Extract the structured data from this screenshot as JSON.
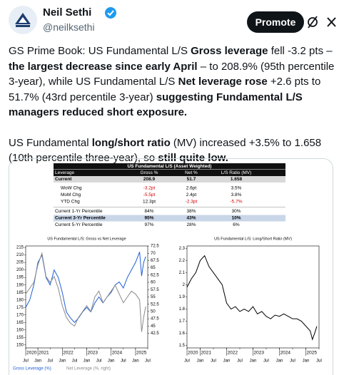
{
  "header": {
    "name": "Neil Sethi",
    "handle": "@neilksethi",
    "button": "Promote"
  },
  "tweet": {
    "paragraphs": [
      [
        {
          "text": "GS Prime Book: US Fundamental L/S ",
          "bold": false
        },
        {
          "text": "Gross leverage",
          "bold": true
        },
        {
          "text": " fell -3.2 pts – ",
          "bold": false
        },
        {
          "text": "the largest decrease since early April",
          "bold": true
        },
        {
          "text": " – to 208.9% (95th percentile 3-year), while US Fundamental L/S ",
          "bold": false
        },
        {
          "text": "Net leverage rose",
          "bold": true
        },
        {
          "text": " +2.6 pts to 51.7% (43rd percentile 3-year) ",
          "bold": false
        },
        {
          "text": "suggesting Fundamental L/S managers reduced short exposure.",
          "bold": true
        }
      ],
      [
        {
          "text": "US Fundamental ",
          "bold": false
        },
        {
          "text": "long/short ratio",
          "bold": true
        },
        {
          "text": " (MV) increased +3.5% to 1.658 (10th percentile three-year), so ",
          "bold": false
        },
        {
          "text": "still quite low.",
          "bold": true
        }
      ]
    ]
  },
  "table": {
    "title": "US Fundamental L/S (Asset Weighted)",
    "header": [
      "Leverage",
      "Gross %",
      "Net %",
      "L/S Ratio (MV)"
    ],
    "current": {
      "label": "Current",
      "cells": [
        "208.9",
        "51.7",
        "1.658"
      ]
    },
    "changes": [
      {
        "label": "WoW Chg",
        "cells": [
          "-3.2pt",
          "2.6pt",
          "3.5%"
        ]
      },
      {
        "label": "MoM Chg",
        "cells": [
          "-5.5pt",
          "2.4pt",
          "3.8%"
        ]
      },
      {
        "label": "YTD Chg",
        "cells": [
          "12.3pt",
          "-2.3pt",
          "-5.7%"
        ]
      }
    ],
    "percentiles": [
      {
        "label": "Current 1-Yr Percentile",
        "cells": [
          "84%",
          "38%",
          "30%"
        ]
      },
      {
        "label": "Current 3-Yr Percentile",
        "cells": [
          "95%",
          "43%",
          "10%"
        ]
      },
      {
        "label": "Current 5-Yr Percentile",
        "cells": [
          "97%",
          "28%",
          "6%"
        ]
      }
    ]
  },
  "chart_data": [
    {
      "type": "line",
      "title": "US Fundamental L/S: Gross vs Net Leverage",
      "x": [
        "2020-07",
        "2020-09",
        "2020-11",
        "2021-01",
        "2021-03",
        "2021-05",
        "2021-07",
        "2021-09",
        "2021-11",
        "2022-01",
        "2022-03",
        "2022-05",
        "2022-07",
        "2022-09",
        "2022-11",
        "2023-01",
        "2023-03",
        "2023-05",
        "2023-07",
        "2023-09",
        "2023-11",
        "2024-01",
        "2024-03",
        "2024-05",
        "2024-07",
        "2024-09",
        "2024-11",
        "2025-01",
        "2025-03",
        "2025-04",
        "2025-05",
        "2025-06"
      ],
      "xlim": [
        "2020-07",
        "2025-07"
      ],
      "xticks": [
        {
          "value": "2020-07",
          "label": "Jul"
        },
        {
          "value": "2021-01",
          "label": "Jan"
        },
        {
          "value": "2021-07",
          "label": "Jul"
        },
        {
          "value": "2022-01",
          "label": "Jan"
        },
        {
          "value": "2022-07",
          "label": "Jul"
        },
        {
          "value": "2023-01",
          "label": "Jan"
        },
        {
          "value": "2023-07",
          "label": "Jul"
        },
        {
          "value": "2024-01",
          "label": "Jan"
        },
        {
          "value": "2024-07",
          "label": "Jul"
        },
        {
          "value": "2025-01",
          "label": "Jan"
        },
        {
          "value": "2025-07",
          "label": "Jul"
        }
      ],
      "year_ticks": [
        {
          "value": "2020-07",
          "label": "2020"
        },
        {
          "value": "2021-01",
          "label": "2021"
        },
        {
          "value": "2022-01",
          "label": "2022"
        },
        {
          "value": "2023-01",
          "label": "2023"
        },
        {
          "value": "2024-01",
          "label": "2024"
        },
        {
          "value": "2025-01",
          "label": "2025"
        }
      ],
      "ylim": [
        148,
        216
      ],
      "yticks": [
        150,
        155,
        160,
        165,
        170,
        175,
        180,
        185,
        190,
        195,
        200,
        205,
        210,
        215
      ],
      "y2lim": [
        37.5,
        72.5
      ],
      "y2ticks": [
        42.5,
        45,
        47.5,
        50,
        52.5,
        55,
        57.5,
        60,
        62.5,
        65,
        67.5,
        70,
        72.5
      ],
      "series": [
        {
          "name": "Gross Leverage (%)",
          "color": "#1f5fd6",
          "values": [
            175,
            180,
            190,
            205,
            210,
            195,
            190,
            200,
            195,
            185,
            172,
            168,
            165,
            168,
            172,
            175,
            172,
            178,
            182,
            178,
            182,
            185,
            190,
            192,
            188,
            195,
            200,
            205,
            212,
            196,
            205,
            208.9
          ]
        },
        {
          "name": "Net Leverage (%, right)",
          "color": "#8a8a8a",
          "axis": "y2",
          "values": [
            56,
            58,
            60,
            66,
            70,
            62,
            60,
            62,
            58,
            52,
            48,
            46,
            45,
            48,
            50,
            52,
            50,
            55,
            57,
            53,
            55,
            57,
            59,
            56,
            53,
            55,
            57,
            56,
            54,
            43,
            48,
            51.7
          ]
        }
      ]
    },
    {
      "type": "line",
      "title": "US Fundamental L/S: Long/Short Ratio (MV)",
      "x": [
        "2020-07",
        "2020-09",
        "2020-11",
        "2021-01",
        "2021-03",
        "2021-05",
        "2021-07",
        "2021-09",
        "2021-11",
        "2022-01",
        "2022-03",
        "2022-05",
        "2022-07",
        "2022-09",
        "2022-11",
        "2023-01",
        "2023-03",
        "2023-05",
        "2023-07",
        "2023-09",
        "2023-11",
        "2024-01",
        "2024-03",
        "2024-05",
        "2024-07",
        "2024-09",
        "2024-11",
        "2025-01",
        "2025-03",
        "2025-04",
        "2025-05",
        "2025-06"
      ],
      "xlim": [
        "2020-07",
        "2025-07"
      ],
      "xticks": [
        {
          "value": "2020-07",
          "label": "Jul"
        },
        {
          "value": "2021-01",
          "label": "Jan"
        },
        {
          "value": "2021-07",
          "label": "Jul"
        },
        {
          "value": "2022-01",
          "label": "Jan"
        },
        {
          "value": "2022-07",
          "label": "Jul"
        },
        {
          "value": "2023-01",
          "label": "Jan"
        },
        {
          "value": "2023-07",
          "label": "Jul"
        },
        {
          "value": "2024-01",
          "label": "Jan"
        },
        {
          "value": "2024-07",
          "label": "Jul"
        },
        {
          "value": "2025-01",
          "label": "Jan"
        },
        {
          "value": "2025-07",
          "label": "Jul"
        }
      ],
      "year_ticks": [
        {
          "value": "2020-07",
          "label": "2020"
        },
        {
          "value": "2021-01",
          "label": "2021"
        },
        {
          "value": "2022-01",
          "label": "2022"
        },
        {
          "value": "2023-01",
          "label": "2023"
        },
        {
          "value": "2024-01",
          "label": "2024"
        },
        {
          "value": "2025-01",
          "label": "2025"
        }
      ],
      "ylim": [
        1.48,
        2.32
      ],
      "yticks": [
        1.5,
        1.6,
        1.7,
        1.8,
        1.9,
        2,
        2.1,
        2.2,
        2.3
      ],
      "color": "#000000",
      "values": [
        1.98,
        2.05,
        2.1,
        2.2,
        2.24,
        2.15,
        2.1,
        2.05,
        2,
        1.85,
        1.8,
        1.82,
        1.78,
        1.8,
        1.78,
        1.82,
        1.76,
        1.78,
        1.74,
        1.72,
        1.75,
        1.74,
        1.76,
        1.74,
        1.72,
        1.72,
        1.7,
        1.66,
        1.62,
        1.55,
        1.6,
        1.658
      ]
    }
  ]
}
